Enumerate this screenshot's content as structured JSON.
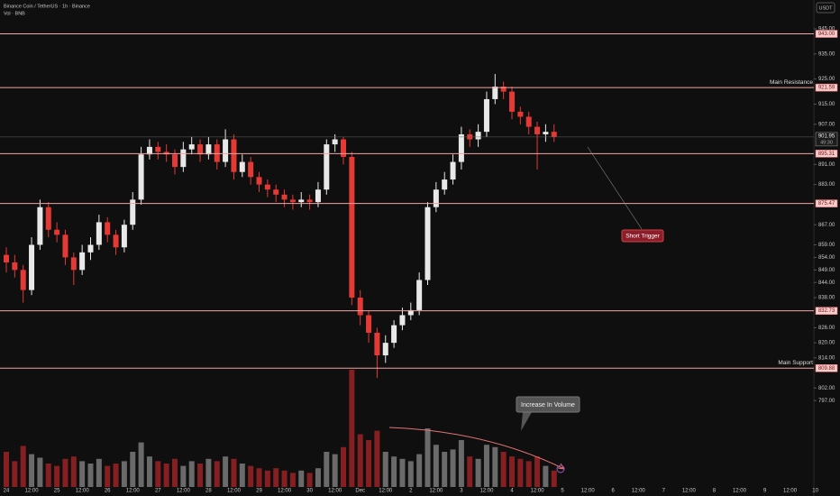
{
  "chart_data": {
    "type": "candlestick",
    "title": "Binance Coin / TetherUS · 1h · Binance",
    "subtitle": "Vol · BNB",
    "currency": "USDT",
    "ylim": [
      762.6,
      953.6
    ],
    "yticks": [
      {
        "value": 945,
        "label": "945.00"
      },
      {
        "value": 935,
        "label": "935.00"
      },
      {
        "value": 925,
        "label": "925.00"
      },
      {
        "value": 915,
        "label": "915.00"
      },
      {
        "value": 907,
        "label": "907.00"
      },
      {
        "value": 891,
        "label": "891.00"
      },
      {
        "value": 883,
        "label": "883.00"
      },
      {
        "value": 867,
        "label": "867.00"
      },
      {
        "value": 859,
        "label": "859.00"
      },
      {
        "value": 854,
        "label": "854.00"
      },
      {
        "value": 849,
        "label": "849.00"
      },
      {
        "value": 844,
        "label": "844.00"
      },
      {
        "value": 838,
        "label": "838.00"
      },
      {
        "value": 826,
        "label": "826.00"
      },
      {
        "value": 820,
        "label": "820.00"
      },
      {
        "value": 814,
        "label": "814.00"
      },
      {
        "value": 802,
        "label": "802.00"
      },
      {
        "value": 797,
        "label": "797.00"
      }
    ],
    "xticks": [
      "24",
      "12:00",
      "25",
      "12:00",
      "26",
      "12:00",
      "27",
      "12:00",
      "28",
      "12:00",
      "29",
      "12:00",
      "30",
      "12:00",
      "Dec",
      "12:00",
      "2",
      "12:00",
      "3",
      "12:00",
      "4",
      "12:00",
      "5",
      "12:00",
      "6",
      "12:00",
      "7",
      "12:00",
      "8",
      "12:00",
      "9",
      "12:00",
      "10"
    ],
    "levels": [
      {
        "value": 943,
        "label": "943.00"
      },
      {
        "value": 921.59,
        "label": "921.59",
        "name": "Main Resistance"
      },
      {
        "value": 895.31,
        "label": "895.31"
      },
      {
        "value": 875.47,
        "label": "875.47"
      },
      {
        "value": 832.73,
        "label": "832.73"
      },
      {
        "value": 809.88,
        "label": "809.88",
        "name": "Main Support"
      }
    ],
    "current_price": {
      "value": 901.95,
      "label": "901.95",
      "countdown": "49:30"
    },
    "annotations": [
      "Short Trigger",
      "Increase In Volume"
    ],
    "up_color": "#e8e8e8",
    "down_color": "#e53935",
    "level_color": "#f2a5a5",
    "open": [
      855,
      852,
      849,
      841,
      859,
      874,
      865,
      863,
      854,
      849,
      856,
      859,
      868,
      863,
      858,
      867,
      877,
      895,
      898,
      896,
      895,
      890,
      897,
      899,
      895,
      899,
      892,
      901,
      888,
      892,
      886,
      883,
      881,
      879,
      877,
      876,
      877,
      876,
      881,
      899,
      901,
      894,
      838,
      831,
      824,
      815,
      820,
      827,
      831,
      833,
      845,
      874,
      881,
      885,
      892,
      903,
      901,
      904,
      917,
      922,
      920,
      912,
      910,
      906,
      903,
      904
    ],
    "high": [
      858,
      855,
      851,
      862,
      877,
      876,
      868,
      865,
      856,
      859,
      862,
      871,
      870,
      865,
      869,
      880,
      898,
      901,
      900,
      899,
      897,
      900,
      902,
      901,
      902,
      901,
      905,
      903,
      895,
      894,
      888,
      885,
      883,
      881,
      879,
      880,
      879,
      884,
      901,
      903,
      902,
      896,
      841,
      833,
      826,
      823,
      829,
      834,
      836,
      848,
      876,
      884,
      888,
      895,
      906,
      905,
      907,
      920,
      927,
      924,
      922,
      914,
      912,
      908,
      907,
      907
    ],
    "low": [
      848,
      846,
      836,
      839,
      857,
      862,
      860,
      851,
      843,
      847,
      853,
      857,
      860,
      855,
      856,
      865,
      875,
      893,
      893,
      892,
      887,
      888,
      895,
      892,
      893,
      889,
      890,
      885,
      886,
      883,
      880,
      878,
      876,
      874,
      873,
      874,
      873,
      874,
      879,
      896,
      891,
      835,
      827,
      820,
      806,
      812,
      818,
      825,
      829,
      831,
      843,
      872,
      879,
      883,
      889,
      898,
      898,
      902,
      915,
      917,
      909,
      907,
      903,
      889,
      900,
      900
    ],
    "close": [
      852,
      849,
      841,
      859,
      874,
      865,
      863,
      854,
      849,
      856,
      859,
      868,
      863,
      858,
      867,
      877,
      895,
      898,
      896,
      895,
      890,
      897,
      899,
      895,
      899,
      892,
      901,
      888,
      892,
      886,
      883,
      881,
      879,
      877,
      876,
      877,
      876,
      881,
      899,
      901,
      894,
      838,
      831,
      824,
      815,
      820,
      827,
      831,
      833,
      845,
      874,
      881,
      885,
      892,
      903,
      901,
      904,
      917,
      922,
      920,
      912,
      910,
      906,
      903,
      904,
      902
    ],
    "volume_lim": [
      0,
      100
    ],
    "volume": [
      30,
      22,
      35,
      28,
      25,
      20,
      18,
      24,
      26,
      22,
      20,
      24,
      18,
      20,
      22,
      30,
      38,
      26,
      22,
      20,
      24,
      18,
      22,
      20,
      24,
      22,
      26,
      24,
      20,
      18,
      16,
      14,
      16,
      14,
      12,
      14,
      12,
      16,
      30,
      28,
      34,
      100,
      45,
      40,
      48,
      30,
      26,
      24,
      22,
      28,
      50,
      36,
      30,
      32,
      40,
      26,
      24,
      36,
      34,
      30,
      26,
      24,
      22,
      26,
      18,
      14
    ]
  }
}
